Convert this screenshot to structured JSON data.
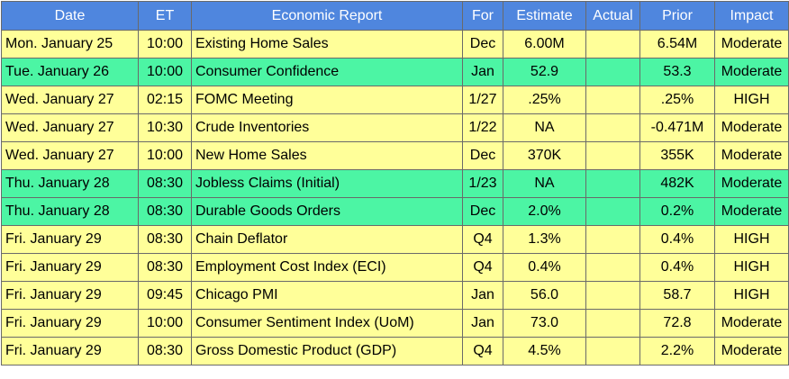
{
  "columns": [
    "Date",
    "ET",
    "Economic Report",
    "For",
    "Estimate",
    "Actual",
    "Prior",
    "Impact"
  ],
  "colors": {
    "header_bg": "#4f86de",
    "header_text": "#ffffff",
    "row_yellow": "#ffff99",
    "row_green": "#4cf5a4",
    "grid": "#6a6a6a"
  },
  "rows": [
    {
      "date": "Mon. January 25",
      "et": "10:00",
      "report": "Existing Home Sales",
      "for": "Dec",
      "estimate": "6.00M",
      "actual": "",
      "prior": "6.54M",
      "impact": "Moderate",
      "highlight": "yellow"
    },
    {
      "date": "Tue. January 26",
      "et": "10:00",
      "report": "Consumer Confidence",
      "for": "Jan",
      "estimate": "52.9",
      "actual": "",
      "prior": "53.3",
      "impact": "Moderate",
      "highlight": "green"
    },
    {
      "date": "Wed. January 27",
      "et": "02:15",
      "report": "FOMC Meeting",
      "for": "1/27",
      "estimate": ".25%",
      "actual": "",
      "prior": ".25%",
      "impact": "HIGH",
      "highlight": "yellow"
    },
    {
      "date": "Wed. January 27",
      "et": "10:30",
      "report": "Crude Inventories",
      "for": "1/22",
      "estimate": "NA",
      "actual": "",
      "prior": "-0.471M",
      "impact": "Moderate",
      "highlight": "yellow"
    },
    {
      "date": "Wed. January 27",
      "et": "10:00",
      "report": "New Home Sales",
      "for": "Dec",
      "estimate": "370K",
      "actual": "",
      "prior": "355K",
      "impact": "Moderate",
      "highlight": "yellow"
    },
    {
      "date": "Thu. January 28",
      "et": "08:30",
      "report": "Jobless Claims (Initial)",
      "for": "1/23",
      "estimate": "NA",
      "actual": "",
      "prior": "482K",
      "impact": "Moderate",
      "highlight": "green"
    },
    {
      "date": "Thu. January 28",
      "et": "08:30",
      "report": "Durable Goods Orders",
      "for": "Dec",
      "estimate": "2.0%",
      "actual": "",
      "prior": "0.2%",
      "impact": "Moderate",
      "highlight": "green"
    },
    {
      "date": "Fri. January 29",
      "et": "08:30",
      "report": "Chain Deflator",
      "for": "Q4",
      "estimate": "1.3%",
      "actual": "",
      "prior": "0.4%",
      "impact": "HIGH",
      "highlight": "yellow"
    },
    {
      "date": "Fri. January 29",
      "et": "08:30",
      "report": "Employment Cost Index (ECI)",
      "for": "Q4",
      "estimate": "0.4%",
      "actual": "",
      "prior": "0.4%",
      "impact": "HIGH",
      "highlight": "yellow"
    },
    {
      "date": "Fri. January 29",
      "et": "09:45",
      "report": "Chicago PMI",
      "for": "Jan",
      "estimate": "56.0",
      "actual": "",
      "prior": "58.7",
      "impact": "HIGH",
      "highlight": "yellow"
    },
    {
      "date": "Fri. January 29",
      "et": "10:00",
      "report": "Consumer Sentiment Index (UoM)",
      "for": "Jan",
      "estimate": "73.0",
      "actual": "",
      "prior": "72.8",
      "impact": "Moderate",
      "highlight": "yellow"
    },
    {
      "date": "Fri. January 29",
      "et": "08:30",
      "report": "Gross Domestic Product (GDP)",
      "for": "Q4",
      "estimate": "4.5%",
      "actual": "",
      "prior": "2.2%",
      "impact": "Moderate",
      "highlight": "yellow"
    }
  ]
}
